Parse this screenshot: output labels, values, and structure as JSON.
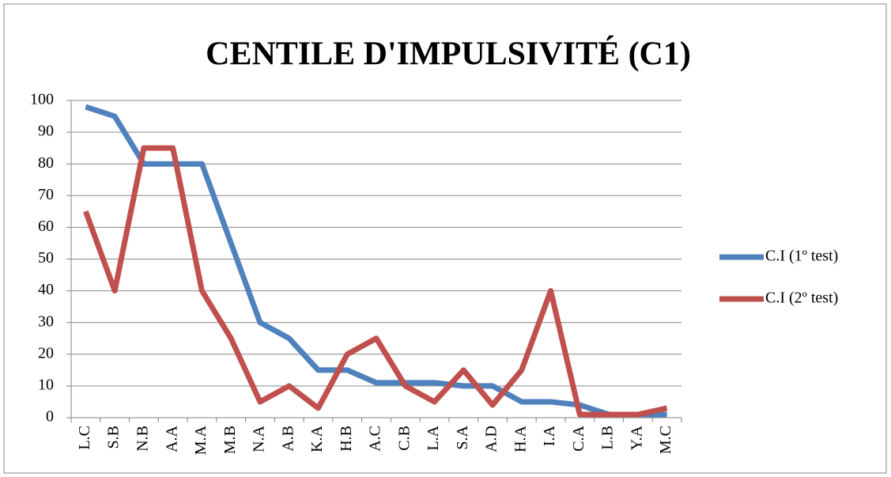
{
  "chart_data": {
    "type": "line",
    "title": "CENTILE D'IMPULSIVITÉ (C1)",
    "categories": [
      "L.C",
      "S.B",
      "N.B",
      "A.A",
      "M.A",
      "M.B",
      "N.A",
      "A.B",
      "K.A",
      "H.B",
      "A.C",
      "C.B",
      "L.A",
      "S.A",
      "A.D",
      "H.A",
      "I.A",
      "C.A",
      "L.B",
      "Y.A",
      "M.C"
    ],
    "series": [
      {
        "name": "C.I (1º test)",
        "color": "#4f81bd",
        "values": [
          98,
          95,
          80,
          80,
          80,
          55,
          30,
          25,
          15,
          15,
          11,
          11,
          11,
          10,
          10,
          5,
          5,
          4,
          1,
          1,
          1
        ]
      },
      {
        "name": "C.I (2º test)",
        "color": "#c0504d",
        "values": [
          65,
          40,
          85,
          85,
          40,
          25,
          5,
          10,
          3,
          20,
          25,
          10,
          5,
          15,
          4,
          15,
          40,
          1,
          1,
          1,
          3
        ]
      }
    ],
    "ylim": [
      0,
      100
    ],
    "yticks": [
      0,
      10,
      20,
      30,
      40,
      50,
      60,
      70,
      80,
      90,
      100
    ],
    "grid": true,
    "legend": "right"
  }
}
